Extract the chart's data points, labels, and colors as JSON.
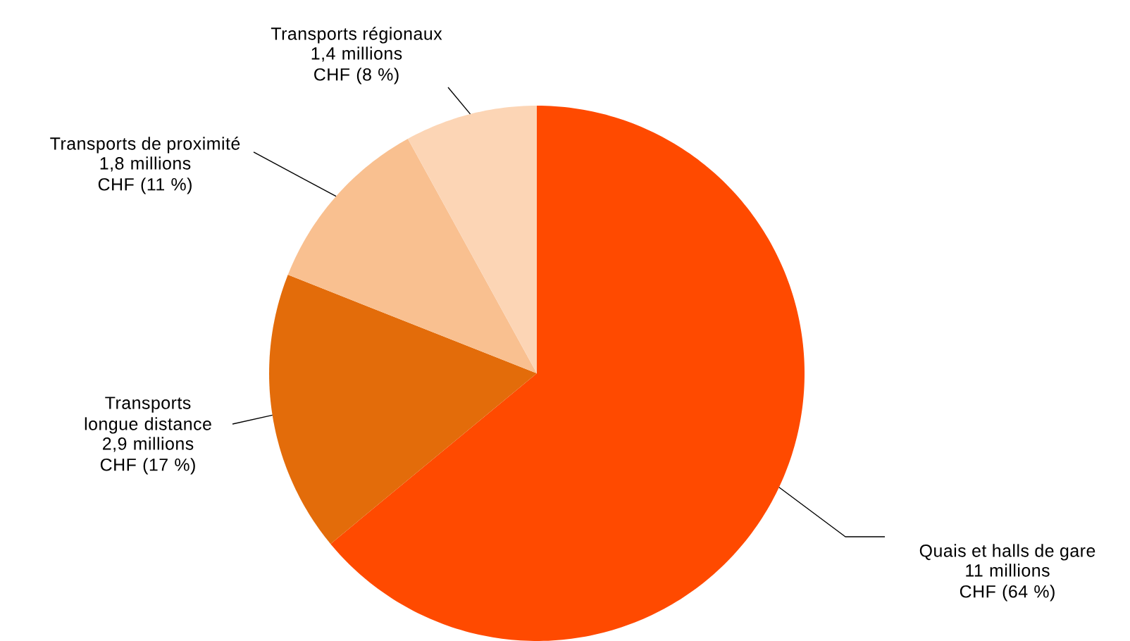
{
  "chart_data": {
    "type": "pie",
    "categories": [
      "Quais et halls de gare",
      "Transports longue distance",
      "Transports de proximité",
      "Transports régionaux"
    ],
    "values": [
      64,
      17,
      11,
      8
    ],
    "value_labels": [
      "11 millions CHF (64 %)",
      "2,9 millions CHF (17 %)",
      "1,8 millions CHF (11 %)",
      "1,4 millions CHF (8 %)"
    ],
    "colors": [
      "#ff4a00",
      "#e36c0a",
      "#f9c090",
      "#fcd5b5"
    ]
  }
}
